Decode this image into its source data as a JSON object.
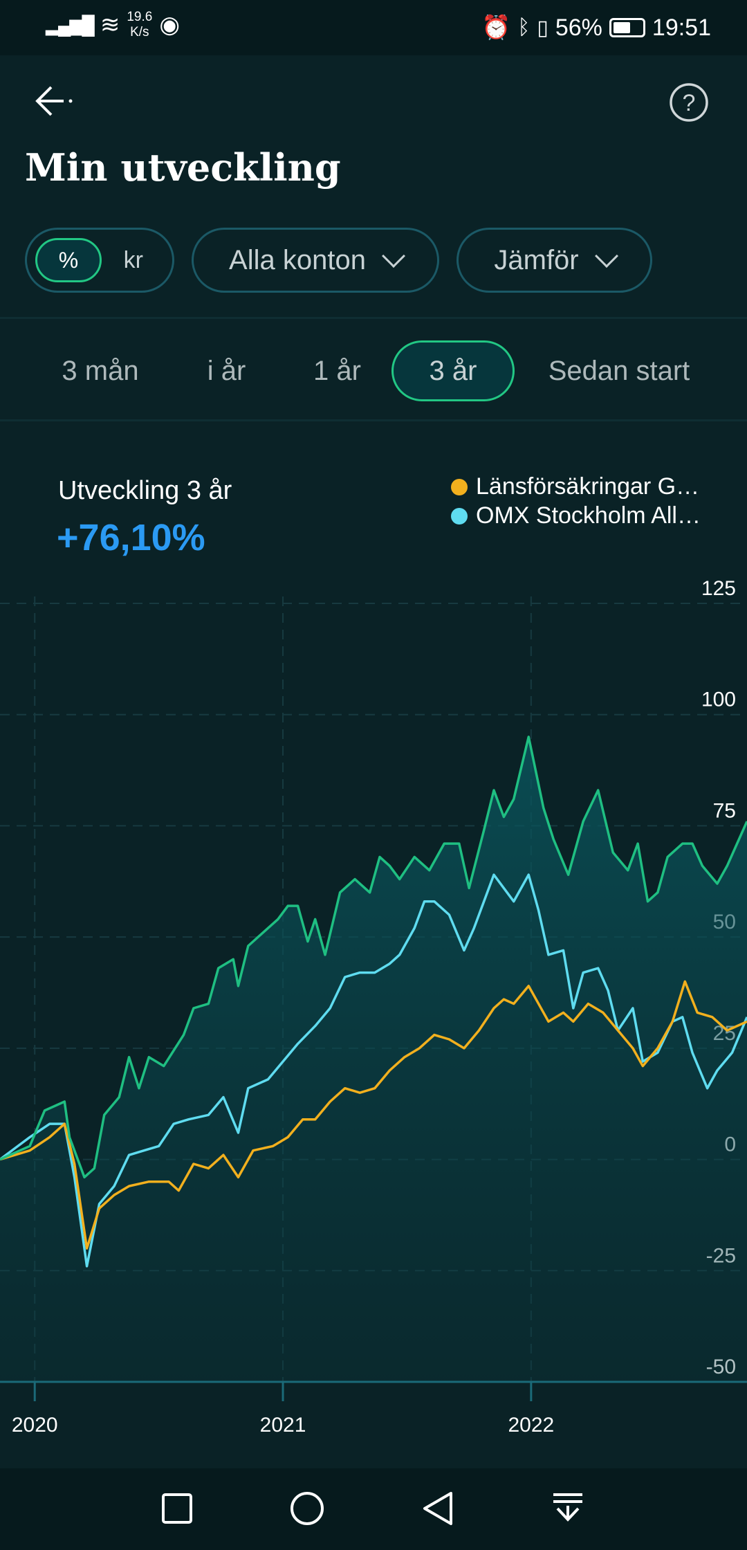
{
  "status_bar": {
    "net_speed_value": "19.6",
    "net_speed_unit": "K/s",
    "battery": "56%",
    "time": "19:51"
  },
  "header": {
    "title": "Min utveckling"
  },
  "filters": {
    "unit_options": [
      "%",
      "kr"
    ],
    "unit_selected": "%",
    "account": "Alla konton",
    "compare": "Jämför"
  },
  "ranges": [
    {
      "label": "3 mån"
    },
    {
      "label": "i år"
    },
    {
      "label": "1 år"
    },
    {
      "label": "3 år",
      "selected": true
    },
    {
      "label": "Sedan start"
    }
  ],
  "summary": {
    "label": "Utveckling 3 år",
    "value": "+76,10%"
  },
  "colors": {
    "portfolio": "#1fbf82",
    "fund": "#f2b01e",
    "index": "#5fdcf0",
    "accent": "#2b9af3"
  },
  "chart_data": {
    "type": "line",
    "legend": [
      "Länsförsäkringar G…",
      "OMX Stockholm All…"
    ],
    "legend_placement": "top-right",
    "ylim": [
      -50,
      125
    ],
    "yticks": [
      "125",
      "100",
      "75",
      "50",
      "25",
      "0",
      "-25",
      "-50"
    ],
    "xlim": [
      2019.86,
      2022.87
    ],
    "xticks": [
      "2020",
      "2021",
      "2022"
    ],
    "series": [
      {
        "name": "Min utveckling",
        "color": "#1fbf82",
        "points": [
          [
            2019.86,
            0
          ],
          [
            2019.98,
            3
          ],
          [
            2020.04,
            11
          ],
          [
            2020.12,
            13
          ],
          [
            2020.14,
            5
          ],
          [
            2020.2,
            -4
          ],
          [
            2020.24,
            -2
          ],
          [
            2020.28,
            10
          ],
          [
            2020.34,
            14
          ],
          [
            2020.38,
            23
          ],
          [
            2020.42,
            16
          ],
          [
            2020.46,
            23
          ],
          [
            2020.52,
            21
          ],
          [
            2020.6,
            28
          ],
          [
            2020.64,
            34
          ],
          [
            2020.7,
            35
          ],
          [
            2020.74,
            43
          ],
          [
            2020.8,
            45
          ],
          [
            2020.82,
            39
          ],
          [
            2020.86,
            48
          ],
          [
            2020.92,
            51
          ],
          [
            2020.98,
            54
          ],
          [
            2021.02,
            57
          ],
          [
            2021.06,
            57
          ],
          [
            2021.1,
            49
          ],
          [
            2021.13,
            54
          ],
          [
            2021.17,
            46
          ],
          [
            2021.23,
            60
          ],
          [
            2021.29,
            63
          ],
          [
            2021.35,
            60
          ],
          [
            2021.39,
            68
          ],
          [
            2021.43,
            66
          ],
          [
            2021.47,
            63
          ],
          [
            2021.53,
            68
          ],
          [
            2021.59,
            65
          ],
          [
            2021.65,
            71
          ],
          [
            2021.71,
            71
          ],
          [
            2021.75,
            61
          ],
          [
            2021.81,
            74
          ],
          [
            2021.85,
            83
          ],
          [
            2021.89,
            77
          ],
          [
            2021.93,
            81
          ],
          [
            2021.99,
            95
          ],
          [
            2022.05,
            79
          ],
          [
            2022.09,
            72
          ],
          [
            2022.15,
            64
          ],
          [
            2022.21,
            76
          ],
          [
            2022.27,
            83
          ],
          [
            2022.33,
            69
          ],
          [
            2022.39,
            65
          ],
          [
            2022.43,
            71
          ],
          [
            2022.47,
            58
          ],
          [
            2022.51,
            60
          ],
          [
            2022.55,
            68
          ],
          [
            2022.61,
            71
          ],
          [
            2022.65,
            71
          ],
          [
            2022.69,
            66
          ],
          [
            2022.75,
            62
          ],
          [
            2022.79,
            66
          ],
          [
            2022.83,
            71
          ],
          [
            2022.87,
            76
          ]
        ]
      },
      {
        "name": "Länsförsäkringar G…",
        "color": "#f2b01e",
        "points": [
          [
            2019.86,
            0
          ],
          [
            2019.98,
            2
          ],
          [
            2020.06,
            5
          ],
          [
            2020.12,
            8
          ],
          [
            2020.16,
            -1
          ],
          [
            2020.21,
            -20
          ],
          [
            2020.26,
            -11
          ],
          [
            2020.32,
            -8
          ],
          [
            2020.38,
            -6
          ],
          [
            2020.46,
            -5
          ],
          [
            2020.54,
            -5
          ],
          [
            2020.58,
            -7
          ],
          [
            2020.64,
            -1
          ],
          [
            2020.7,
            -2
          ],
          [
            2020.76,
            1
          ],
          [
            2020.82,
            -4
          ],
          [
            2020.88,
            2
          ],
          [
            2020.96,
            3
          ],
          [
            2021.02,
            5
          ],
          [
            2021.08,
            9
          ],
          [
            2021.13,
            9
          ],
          [
            2021.19,
            13
          ],
          [
            2021.25,
            16
          ],
          [
            2021.31,
            15
          ],
          [
            2021.37,
            16
          ],
          [
            2021.43,
            20
          ],
          [
            2021.49,
            23
          ],
          [
            2021.55,
            25
          ],
          [
            2021.61,
            28
          ],
          [
            2021.67,
            27
          ],
          [
            2021.73,
            25
          ],
          [
            2021.79,
            29
          ],
          [
            2021.85,
            34
          ],
          [
            2021.89,
            36
          ],
          [
            2021.93,
            35
          ],
          [
            2021.99,
            39
          ],
          [
            2022.03,
            35
          ],
          [
            2022.07,
            31
          ],
          [
            2022.13,
            33
          ],
          [
            2022.17,
            31
          ],
          [
            2022.23,
            35
          ],
          [
            2022.29,
            33
          ],
          [
            2022.35,
            29
          ],
          [
            2022.41,
            25
          ],
          [
            2022.45,
            21
          ],
          [
            2022.51,
            25
          ],
          [
            2022.57,
            31
          ],
          [
            2022.62,
            40
          ],
          [
            2022.67,
            33
          ],
          [
            2022.73,
            32
          ],
          [
            2022.79,
            29
          ],
          [
            2022.87,
            31
          ]
        ]
      },
      {
        "name": "OMX Stockholm All…",
        "color": "#5fdcf0",
        "points": [
          [
            2019.86,
            0
          ],
          [
            2019.98,
            5
          ],
          [
            2020.06,
            8
          ],
          [
            2020.12,
            8
          ],
          [
            2020.16,
            -4
          ],
          [
            2020.21,
            -24
          ],
          [
            2020.26,
            -10
          ],
          [
            2020.32,
            -6
          ],
          [
            2020.38,
            1
          ],
          [
            2020.44,
            2
          ],
          [
            2020.5,
            3
          ],
          [
            2020.56,
            8
          ],
          [
            2020.62,
            9
          ],
          [
            2020.7,
            10
          ],
          [
            2020.76,
            14
          ],
          [
            2020.82,
            6
          ],
          [
            2020.86,
            16
          ],
          [
            2020.94,
            18
          ],
          [
            2021.0,
            22
          ],
          [
            2021.06,
            26
          ],
          [
            2021.13,
            30
          ],
          [
            2021.19,
            34
          ],
          [
            2021.25,
            41
          ],
          [
            2021.31,
            42
          ],
          [
            2021.37,
            42
          ],
          [
            2021.43,
            44
          ],
          [
            2021.47,
            46
          ],
          [
            2021.53,
            52
          ],
          [
            2021.57,
            58
          ],
          [
            2021.61,
            58
          ],
          [
            2021.67,
            55
          ],
          [
            2021.73,
            47
          ],
          [
            2021.77,
            52
          ],
          [
            2021.81,
            58
          ],
          [
            2021.85,
            64
          ],
          [
            2021.89,
            61
          ],
          [
            2021.93,
            58
          ],
          [
            2021.99,
            64
          ],
          [
            2022.03,
            56
          ],
          [
            2022.07,
            46
          ],
          [
            2022.13,
            47
          ],
          [
            2022.17,
            34
          ],
          [
            2022.21,
            42
          ],
          [
            2022.27,
            43
          ],
          [
            2022.31,
            38
          ],
          [
            2022.35,
            29
          ],
          [
            2022.41,
            34
          ],
          [
            2022.45,
            22
          ],
          [
            2022.51,
            24
          ],
          [
            2022.57,
            31
          ],
          [
            2022.61,
            32
          ],
          [
            2022.65,
            24
          ],
          [
            2022.71,
            16
          ],
          [
            2022.75,
            20
          ],
          [
            2022.81,
            24
          ],
          [
            2022.87,
            32
          ]
        ]
      }
    ]
  },
  "navbar": {
    "buttons": [
      "recents",
      "home",
      "back",
      "notifications"
    ]
  }
}
